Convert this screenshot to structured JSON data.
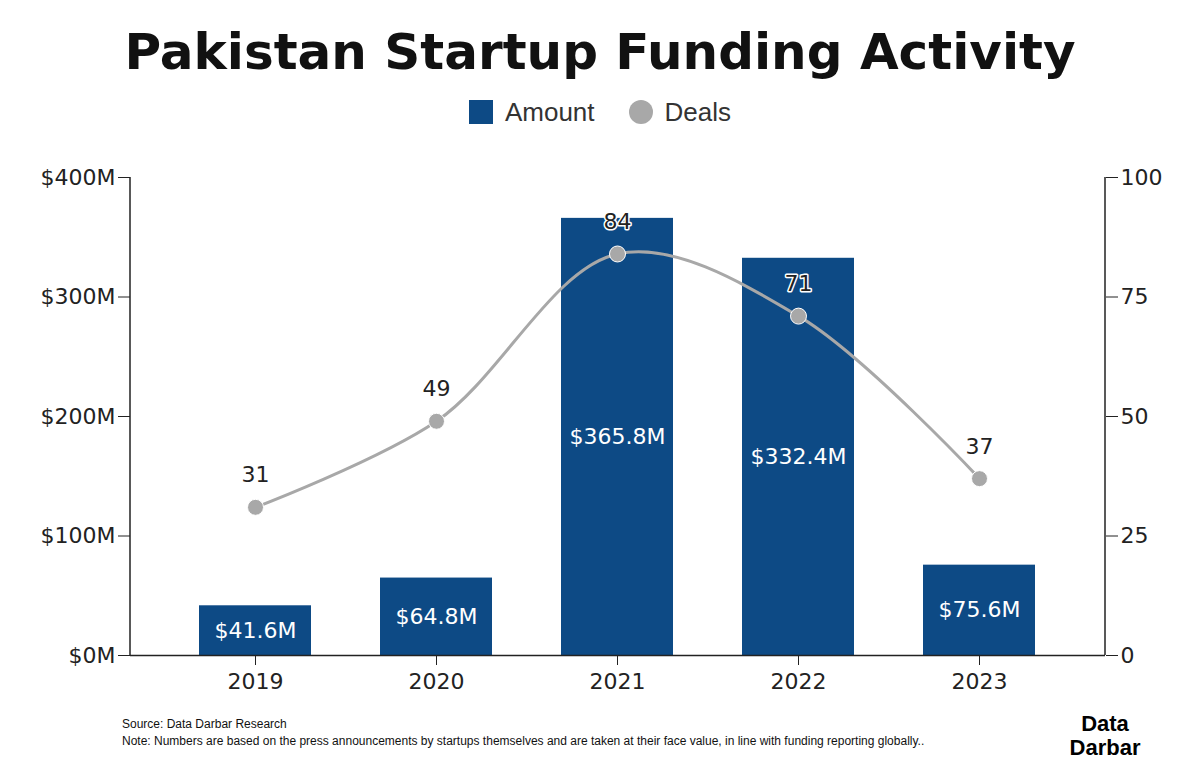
{
  "chart_data": {
    "type": "bar",
    "title": "Pakistan Startup Funding Activity",
    "categories": [
      "2019",
      "2020",
      "2021",
      "2022",
      "2023"
    ],
    "series": [
      {
        "name": "Amount",
        "type": "bar",
        "color": "#0d4a85",
        "values": [
          41.6,
          64.8,
          365.8,
          332.4,
          75.6
        ],
        "value_labels": [
          "$41.6M",
          "$64.8M",
          "$365.8M",
          "$332.4M",
          "$75.6M"
        ]
      },
      {
        "name": "Deals",
        "type": "line",
        "axis": "y2",
        "color": "#a8a8a8",
        "marker": "circle",
        "values": [
          31,
          49,
          84,
          71,
          37
        ]
      }
    ],
    "ylim": [
      0,
      400
    ],
    "yticks": [
      {
        "value": 0,
        "label": "$0M"
      },
      {
        "value": 100,
        "label": "$100M"
      },
      {
        "value": 200,
        "label": "$200M"
      },
      {
        "value": 300,
        "label": "$300M"
      },
      {
        "value": 400,
        "label": "$400M"
      }
    ],
    "y2lim": [
      0,
      100
    ],
    "y2ticks": [
      0,
      25,
      50,
      75,
      100
    ],
    "data_labels": true,
    "legend": "top",
    "grid": false,
    "annotations": [
      "Source: Data Darbar Research",
      "Note: Numbers are based on the press announcements by startups themselves and are taken at their face value, in line with funding reporting globally.."
    ],
    "logo": "Data Darbar"
  }
}
